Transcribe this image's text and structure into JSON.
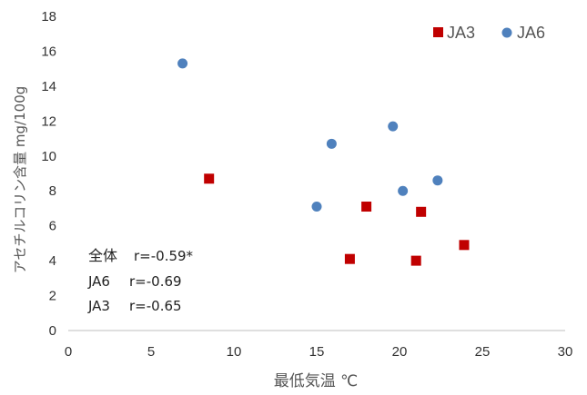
{
  "chart_data": {
    "type": "scatter",
    "xlabel": "最低気温 ℃",
    "ylabel": "アセチルコリン含量 mg/100g",
    "xlim": [
      0,
      30
    ],
    "ylim": [
      0,
      18
    ],
    "xticks": [
      "0",
      "5",
      "10",
      "15",
      "20",
      "25",
      "30"
    ],
    "yticks": [
      "0",
      "2",
      "4",
      "6",
      "8",
      "10",
      "12",
      "14",
      "16",
      "18"
    ],
    "grid": false,
    "legend_position": "top-right",
    "series": [
      {
        "name": "JA3",
        "marker": "square",
        "color": "#c00000",
        "points": [
          {
            "x": 8.5,
            "y": 8.7
          },
          {
            "x": 17.0,
            "y": 4.1
          },
          {
            "x": 18.0,
            "y": 7.1
          },
          {
            "x": 21.0,
            "y": 4.0
          },
          {
            "x": 21.3,
            "y": 6.8
          },
          {
            "x": 23.9,
            "y": 4.9
          }
        ]
      },
      {
        "name": "JA6",
        "marker": "circle",
        "color": "#4f81bd",
        "points": [
          {
            "x": 6.9,
            "y": 15.3
          },
          {
            "x": 15.0,
            "y": 7.1
          },
          {
            "x": 15.9,
            "y": 10.7
          },
          {
            "x": 19.6,
            "y": 11.7
          },
          {
            "x": 20.2,
            "y": 8.0
          },
          {
            "x": 22.3,
            "y": 8.6
          }
        ]
      }
    ],
    "annotations": {
      "overall_label": "全体",
      "overall_r": "r=-0.59*",
      "ja6_label": "JA6",
      "ja6_r": "r=-0.69",
      "ja3_label": "JA3",
      "ja3_r": "r=-0.65"
    }
  }
}
